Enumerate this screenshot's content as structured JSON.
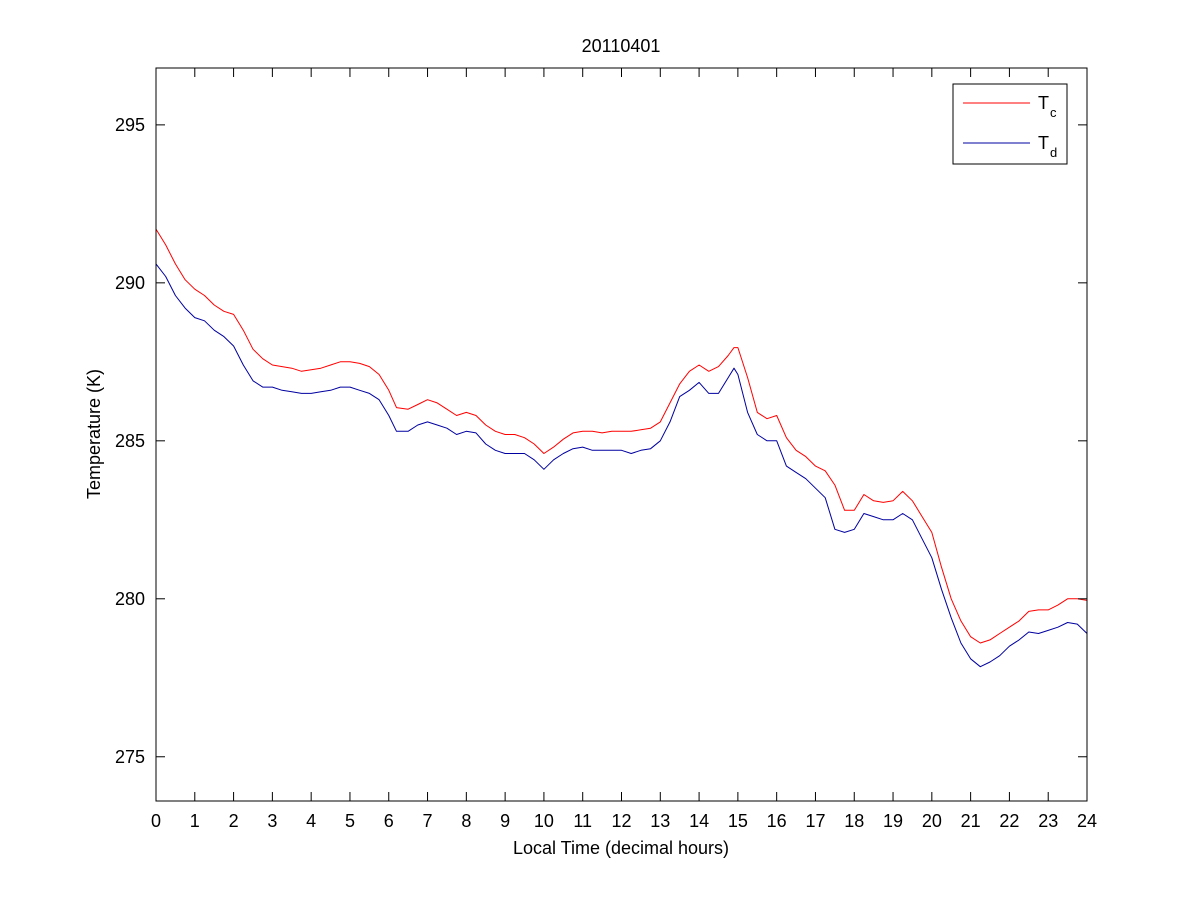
{
  "chart_data": {
    "type": "line",
    "title": "20110401",
    "xlabel": "Local Time (decimal hours)",
    "ylabel": "Temperature (K)",
    "xlim": [
      0,
      24
    ],
    "ylim": [
      273.6,
      296.8
    ],
    "xticks": [
      0,
      1,
      2,
      3,
      4,
      5,
      6,
      7,
      8,
      9,
      10,
      11,
      12,
      13,
      14,
      15,
      16,
      17,
      18,
      19,
      20,
      21,
      22,
      23,
      24
    ],
    "yticks": [
      275,
      280,
      285,
      290,
      295
    ],
    "grid": false,
    "legend_position": "top-right",
    "series": [
      {
        "name": "T",
        "subscript": "c",
        "color": "#ff0000",
        "x": [
          0,
          0.25,
          0.5,
          0.75,
          1.0,
          1.25,
          1.5,
          1.75,
          2.0,
          2.25,
          2.5,
          2.75,
          3.0,
          3.25,
          3.5,
          3.75,
          4.0,
          4.25,
          4.5,
          4.75,
          5.0,
          5.25,
          5.5,
          5.75,
          6.0,
          6.2,
          6.5,
          6.75,
          7.0,
          7.25,
          7.5,
          7.75,
          8.0,
          8.25,
          8.5,
          8.75,
          9.0,
          9.25,
          9.5,
          9.75,
          10.0,
          10.25,
          10.5,
          10.75,
          11.0,
          11.25,
          11.5,
          11.75,
          12.0,
          12.25,
          12.5,
          12.75,
          13.0,
          13.25,
          13.5,
          13.75,
          14.0,
          14.25,
          14.5,
          14.75,
          14.9,
          15.0,
          15.25,
          15.5,
          15.75,
          16.0,
          16.25,
          16.5,
          16.75,
          17.0,
          17.25,
          17.5,
          17.75,
          18.0,
          18.25,
          18.5,
          18.75,
          19.0,
          19.25,
          19.5,
          19.75,
          20.0,
          20.25,
          20.5,
          20.75,
          21.0,
          21.25,
          21.5,
          21.75,
          22.0,
          22.25,
          22.5,
          22.75,
          23.0,
          23.25,
          23.5,
          23.75,
          24.0
        ],
        "values": [
          291.7,
          291.2,
          290.6,
          290.1,
          289.8,
          289.6,
          289.3,
          289.1,
          289.0,
          288.5,
          287.9,
          287.6,
          287.4,
          287.35,
          287.3,
          287.2,
          287.25,
          287.3,
          287.4,
          287.5,
          287.5,
          287.45,
          287.35,
          287.1,
          286.6,
          286.05,
          286.0,
          286.15,
          286.3,
          286.2,
          286.0,
          285.8,
          285.9,
          285.8,
          285.5,
          285.3,
          285.2,
          285.2,
          285.1,
          284.9,
          284.6,
          284.8,
          285.05,
          285.25,
          285.3,
          285.3,
          285.25,
          285.3,
          285.3,
          285.3,
          285.35,
          285.4,
          285.6,
          286.2,
          286.8,
          287.2,
          287.4,
          287.2,
          287.35,
          287.7,
          287.95,
          287.95,
          287.0,
          285.9,
          285.7,
          285.8,
          285.1,
          284.7,
          284.5,
          284.2,
          284.05,
          283.6,
          282.8,
          282.8,
          283.3,
          283.1,
          283.05,
          283.1,
          283.4,
          283.1,
          282.6,
          282.1,
          281.0,
          280.0,
          279.3,
          278.8,
          278.6,
          278.7,
          278.9,
          279.1,
          279.3,
          279.6,
          279.65,
          279.65,
          279.8,
          280.0,
          280.0,
          279.95
        ]
      },
      {
        "name": "T",
        "subscript": "d",
        "color": "#0000a0",
        "x": [
          0,
          0.25,
          0.5,
          0.75,
          1.0,
          1.25,
          1.5,
          1.75,
          2.0,
          2.25,
          2.5,
          2.75,
          3.0,
          3.25,
          3.5,
          3.75,
          4.0,
          4.25,
          4.5,
          4.75,
          5.0,
          5.25,
          5.5,
          5.75,
          6.0,
          6.2,
          6.5,
          6.75,
          7.0,
          7.25,
          7.5,
          7.75,
          8.0,
          8.25,
          8.5,
          8.75,
          9.0,
          9.25,
          9.5,
          9.75,
          10.0,
          10.25,
          10.5,
          10.75,
          11.0,
          11.25,
          11.5,
          11.75,
          12.0,
          12.25,
          12.5,
          12.75,
          13.0,
          13.25,
          13.5,
          13.75,
          14.0,
          14.25,
          14.5,
          14.75,
          14.9,
          15.0,
          15.25,
          15.5,
          15.75,
          16.0,
          16.25,
          16.5,
          16.75,
          17.0,
          17.25,
          17.5,
          17.75,
          18.0,
          18.25,
          18.5,
          18.75,
          19.0,
          19.25,
          19.5,
          19.75,
          20.0,
          20.25,
          20.5,
          20.75,
          21.0,
          21.25,
          21.5,
          21.75,
          22.0,
          22.25,
          22.5,
          22.75,
          23.0,
          23.25,
          23.5,
          23.75,
          24.0
        ],
        "values": [
          290.6,
          290.2,
          289.6,
          289.2,
          288.9,
          288.8,
          288.5,
          288.3,
          288.0,
          287.4,
          286.9,
          286.7,
          286.7,
          286.6,
          286.55,
          286.5,
          286.5,
          286.55,
          286.6,
          286.7,
          286.7,
          286.6,
          286.5,
          286.3,
          285.8,
          285.3,
          285.3,
          285.5,
          285.6,
          285.5,
          285.4,
          285.2,
          285.3,
          285.25,
          284.9,
          284.7,
          284.6,
          284.6,
          284.6,
          284.4,
          284.1,
          284.4,
          284.6,
          284.75,
          284.8,
          284.7,
          284.7,
          284.7,
          284.7,
          284.6,
          284.7,
          284.75,
          285.0,
          285.6,
          286.4,
          286.6,
          286.85,
          286.5,
          286.5,
          287.0,
          287.3,
          287.1,
          285.9,
          285.2,
          285.0,
          285.0,
          284.2,
          284.0,
          283.8,
          283.5,
          283.2,
          282.2,
          282.1,
          282.2,
          282.7,
          282.6,
          282.5,
          282.5,
          282.7,
          282.5,
          281.9,
          281.3,
          280.3,
          279.4,
          278.6,
          278.1,
          277.85,
          278.0,
          278.2,
          278.5,
          278.7,
          278.95,
          278.9,
          279.0,
          279.1,
          279.25,
          279.2,
          278.9
        ]
      }
    ]
  }
}
